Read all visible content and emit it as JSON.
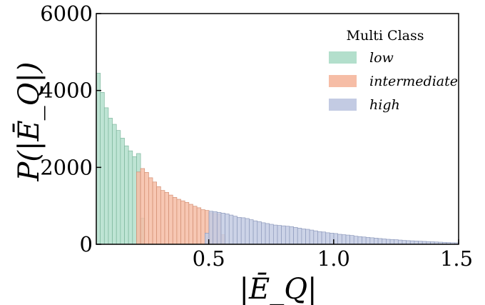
{
  "chart_data": {
    "type": "bar",
    "subtype": "stacked-overlapping-histogram",
    "xlabel": "|Ē_Q|",
    "ylabel": "P(|Ē_Q|)",
    "xlim": [
      0.05,
      1.5
    ],
    "ylim": [
      0,
      6000
    ],
    "x_ticks": [
      0.5,
      1.0,
      1.5
    ],
    "x_tick_labels": [
      "0.5",
      "1.0",
      "1.5"
    ],
    "y_ticks": [
      0,
      2000,
      4000,
      6000
    ],
    "y_tick_labels": [
      "0",
      "2000",
      "4000",
      "6000"
    ],
    "grid": false,
    "legend": {
      "title": "Multi Class",
      "placement": "top-right"
    },
    "bin_width": 0.01611,
    "series": [
      {
        "name": "low",
        "color": "#b3dfcc",
        "edge": "#7fb79e",
        "bin_start": 0.05,
        "values": [
          4450,
          3950,
          3550,
          3280,
          3120,
          2960,
          2760,
          2560,
          2430,
          2280,
          2360,
          680
        ]
      },
      {
        "name": "intermediate",
        "color": "#f6bda6",
        "edge": "#d38e72",
        "bin_start": 0.2111,
        "values": [
          1880,
          1970,
          1870,
          1730,
          1620,
          1500,
          1400,
          1350,
          1280,
          1220,
          1170,
          1130,
          1090,
          1040,
          990,
          950,
          900,
          880,
          820,
          800,
          780,
          250
        ]
      },
      {
        "name": "high",
        "color": "#c3cbe3",
        "edge": "#8f9bbd",
        "bin_start": 0.485,
        "values": [
          290,
          860,
          850,
          830,
          810,
          790,
          760,
          730,
          700,
          690,
          670,
          640,
          610,
          590,
          560,
          540,
          520,
          500,
          490,
          480,
          470,
          460,
          440,
          420,
          400,
          390,
          370,
          350,
          330,
          320,
          300,
          290,
          280,
          260,
          250,
          240,
          230,
          210,
          200,
          190,
          180,
          170,
          160,
          150,
          140,
          130,
          125,
          120,
          110,
          100,
          95,
          90,
          85,
          80,
          75,
          70,
          65,
          60,
          55,
          50,
          45,
          40,
          38
        ]
      }
    ]
  }
}
